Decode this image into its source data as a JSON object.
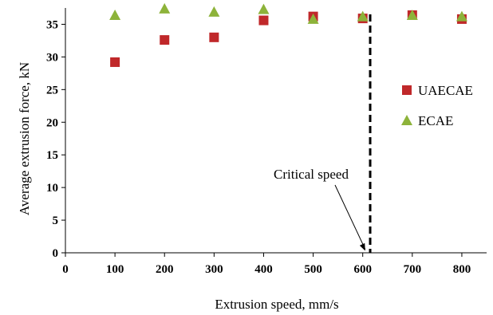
{
  "chart_data": {
    "type": "scatter",
    "xlabel": "Extrusion speed, mm/s",
    "ylabel": "Average extrusion force, kN",
    "xlim": [
      0,
      850
    ],
    "ylim": [
      0,
      37.5
    ],
    "xticks": [
      0,
      100,
      200,
      300,
      400,
      500,
      600,
      700,
      800
    ],
    "yticks": [
      0,
      5,
      10,
      15,
      20,
      25,
      30,
      35
    ],
    "grid": false,
    "legend_position": "right",
    "series": [
      {
        "name": "UAECAE",
        "marker": "square",
        "color": "#c0282a",
        "points": [
          [
            100,
            29.2
          ],
          [
            200,
            32.6
          ],
          [
            300,
            33.0
          ],
          [
            400,
            35.6
          ],
          [
            500,
            36.2
          ],
          [
            600,
            35.9
          ],
          [
            700,
            36.4
          ],
          [
            800,
            35.8
          ]
        ]
      },
      {
        "name": "ECAE",
        "marker": "triangle",
        "color": "#8db33a",
        "points": [
          [
            100,
            36.4
          ],
          [
            200,
            37.4
          ],
          [
            300,
            36.9
          ],
          [
            400,
            37.3
          ],
          [
            500,
            35.8
          ],
          [
            600,
            36.2
          ],
          [
            700,
            36.4
          ],
          [
            800,
            36.2
          ]
        ]
      }
    ],
    "critical_line_x": 615,
    "annotation": {
      "text": "Critical speed",
      "arrow_to": [
        605,
        0.3
      ]
    }
  }
}
